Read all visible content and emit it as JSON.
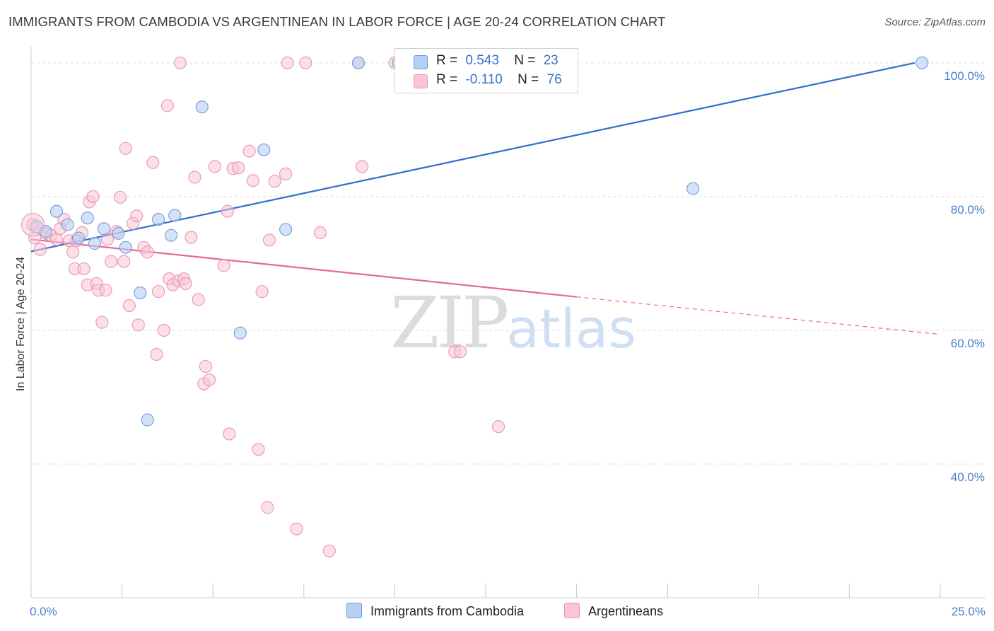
{
  "title": "IMMIGRANTS FROM CAMBODIA VS ARGENTINEAN IN LABOR FORCE | AGE 20-24 CORRELATION CHART",
  "source": "Source: ZipAtlas.com",
  "watermark": {
    "zip": "ZIP",
    "atlas": "atlas"
  },
  "legend": {
    "r_label": "R =",
    "n_label": "N =",
    "rows": [
      {
        "r": "0.543",
        "n": "23"
      },
      {
        "r": "-0.110",
        "n": "76"
      }
    ]
  },
  "colors": {
    "cambodia_fill": "#b7cff2",
    "cambodia_stroke": "#6f9de0",
    "cambodia_line": "#2f6fcc",
    "argentina_fill": "#f8c6d6",
    "argentina_stroke": "#ec93b1",
    "argentina_line": "#e06a95",
    "grid": "#dedede",
    "tick_text": "#4a7fd0"
  },
  "chart_data": {
    "type": "scatter",
    "ylabel": "In Labor Force | Age 20-24",
    "xlim": [
      0,
      25
    ],
    "ylim": [
      20,
      102
    ],
    "x_tick_labels": [
      "0.0%",
      "25.0%"
    ],
    "x_ticks": [
      0,
      25
    ],
    "y_ticks": [
      40,
      60,
      80,
      100
    ],
    "y_tick_labels": [
      "40.0%",
      "60.0%",
      "80.0%",
      "100.0%"
    ],
    "grid": true,
    "series": [
      {
        "name": "Immigrants from Cambodia",
        "points": [
          [
            0.15,
            75.5
          ],
          [
            0.4,
            74.8
          ],
          [
            0.7,
            77.8
          ],
          [
            1.0,
            75.8
          ],
          [
            1.3,
            73.8
          ],
          [
            1.55,
            76.8
          ],
          [
            1.75,
            73.0
          ],
          [
            2.0,
            75.2
          ],
          [
            2.4,
            74.5
          ],
          [
            2.6,
            72.4
          ],
          [
            3.0,
            65.6
          ],
          [
            3.2,
            46.6
          ],
          [
            3.5,
            76.6
          ],
          [
            3.85,
            74.2
          ],
          [
            3.95,
            77.2
          ],
          [
            4.7,
            93.4
          ],
          [
            5.75,
            59.6
          ],
          [
            6.4,
            87.0
          ],
          [
            7.0,
            75.1
          ],
          [
            9.0,
            100.0
          ],
          [
            10.1,
            100.0
          ],
          [
            18.2,
            81.2
          ],
          [
            24.5,
            100.0
          ]
        ],
        "trend": {
          "x": [
            0,
            24.3
          ],
          "y": [
            71.8,
            100.0
          ]
        }
      },
      {
        "name": "Argentineans",
        "points": [
          [
            0.05,
            75.8
          ],
          [
            0.1,
            73.8
          ],
          [
            0.25,
            72.1
          ],
          [
            0.4,
            74.5
          ],
          [
            0.55,
            74.2
          ],
          [
            0.7,
            73.6
          ],
          [
            0.8,
            75.2
          ],
          [
            0.9,
            76.6
          ],
          [
            1.05,
            73.4
          ],
          [
            1.15,
            71.7
          ],
          [
            1.2,
            69.2
          ],
          [
            1.4,
            74.6
          ],
          [
            1.45,
            69.2
          ],
          [
            1.55,
            66.8
          ],
          [
            1.6,
            79.2
          ],
          [
            1.7,
            80.0
          ],
          [
            1.8,
            67.0
          ],
          [
            1.85,
            66.0
          ],
          [
            1.95,
            61.2
          ],
          [
            2.05,
            66.0
          ],
          [
            2.1,
            73.6
          ],
          [
            2.2,
            70.3
          ],
          [
            2.35,
            74.8
          ],
          [
            2.45,
            79.9
          ],
          [
            2.55,
            70.3
          ],
          [
            2.6,
            87.2
          ],
          [
            2.7,
            63.7
          ],
          [
            2.8,
            76.0
          ],
          [
            2.9,
            77.1
          ],
          [
            2.95,
            60.8
          ],
          [
            3.1,
            72.4
          ],
          [
            3.2,
            71.7
          ],
          [
            3.35,
            85.1
          ],
          [
            3.45,
            56.4
          ],
          [
            3.5,
            65.8
          ],
          [
            3.65,
            60.0
          ],
          [
            3.8,
            67.7
          ],
          [
            3.9,
            66.8
          ],
          [
            4.05,
            67.4
          ],
          [
            4.1,
            100.0
          ],
          [
            4.2,
            67.7
          ],
          [
            4.25,
            67.0
          ],
          [
            4.4,
            73.9
          ],
          [
            4.5,
            82.9
          ],
          [
            4.6,
            64.6
          ],
          [
            4.75,
            52.0
          ],
          [
            4.8,
            54.6
          ],
          [
            4.9,
            52.6
          ],
          [
            5.05,
            84.5
          ],
          [
            5.3,
            69.7
          ],
          [
            5.4,
            77.8
          ],
          [
            5.45,
            44.5
          ],
          [
            5.55,
            84.2
          ],
          [
            5.7,
            84.3
          ],
          [
            6.0,
            86.8
          ],
          [
            6.1,
            82.4
          ],
          [
            6.25,
            42.2
          ],
          [
            6.35,
            65.8
          ],
          [
            6.5,
            33.5
          ],
          [
            6.55,
            73.5
          ],
          [
            6.7,
            82.3
          ],
          [
            7.0,
            83.4
          ],
          [
            7.05,
            100.0
          ],
          [
            7.3,
            30.3
          ],
          [
            7.55,
            100.0
          ],
          [
            7.95,
            74.6
          ],
          [
            8.2,
            27.0
          ],
          [
            9.0,
            100.0
          ],
          [
            9.1,
            84.5
          ],
          [
            10.0,
            100.0
          ],
          [
            10.2,
            96.5
          ],
          [
            11.65,
            56.8
          ],
          [
            11.8,
            56.8
          ],
          [
            12.85,
            45.6
          ],
          [
            3.75,
            93.6
          ],
          [
            1.25,
            73.4
          ]
        ],
        "trend": {
          "x": [
            0,
            15.0
          ],
          "y": [
            73.6,
            65.0
          ]
        },
        "trend_dashed": {
          "x": [
            15.0,
            25.0
          ],
          "y": [
            65.0,
            59.4
          ]
        }
      }
    ]
  }
}
